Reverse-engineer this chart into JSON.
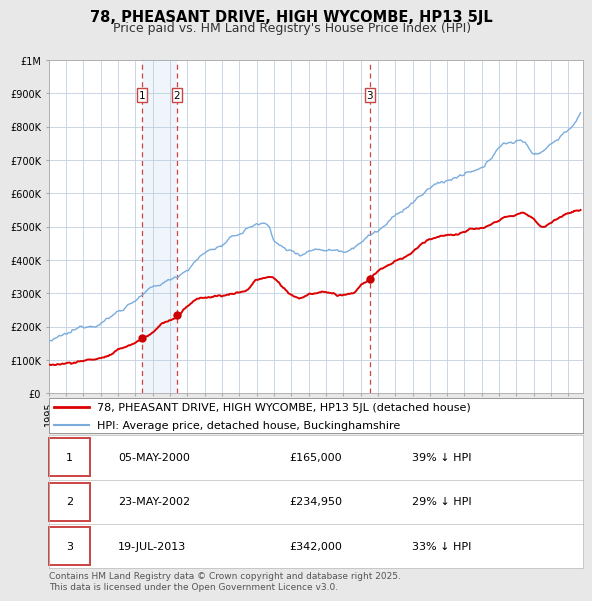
{
  "title": "78, PHEASANT DRIVE, HIGH WYCOMBE, HP13 5JL",
  "subtitle": "Price paid vs. HM Land Registry's House Price Index (HPI)",
  "ylim": [
    0,
    1000000
  ],
  "xlim_start": 1995.0,
  "xlim_end": 2025.83,
  "background_color": "#e8e8e8",
  "plot_bg_color": "#ffffff",
  "grid_color": "#c0d0e0",
  "sale_dates": [
    2000.37,
    2002.39,
    2013.54
  ],
  "sale_prices": [
    165000,
    234950,
    342000
  ],
  "sale_labels": [
    "1",
    "2",
    "3"
  ],
  "legend_line1": "78, PHEASANT DRIVE, HIGH WYCOMBE, HP13 5JL (detached house)",
  "legend_line2": "HPI: Average price, detached house, Buckinghamshire",
  "table_rows": [
    {
      "num": "1",
      "date": "05-MAY-2000",
      "price": "£165,000",
      "pct": "39% ↓ HPI"
    },
    {
      "num": "2",
      "date": "23-MAY-2002",
      "price": "£234,950",
      "pct": "29% ↓ HPI"
    },
    {
      "num": "3",
      "date": "19-JUL-2013",
      "price": "£342,000",
      "pct": "33% ↓ HPI"
    }
  ],
  "footer": "Contains HM Land Registry data © Crown copyright and database right 2025.\nThis data is licensed under the Open Government Licence v3.0.",
  "red_color": "#dd0000",
  "blue_color": "#7aaddd",
  "dot_color": "#cc0000",
  "vline_color": "#cc4444",
  "shade_color_blue": "#ddeeff",
  "title_fontsize": 10.5,
  "subtitle_fontsize": 9,
  "tick_fontsize": 7,
  "legend_fontsize": 8,
  "table_fontsize": 8,
  "footer_fontsize": 6.5
}
